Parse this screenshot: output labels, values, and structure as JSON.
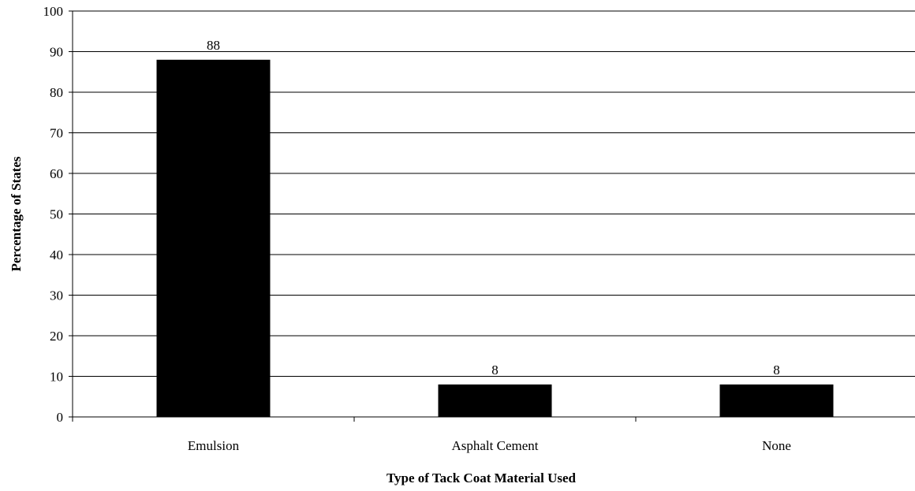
{
  "chart_data": {
    "type": "bar",
    "title": "",
    "xlabel": "Type of Tack Coat Material Used",
    "ylabel": "Percentage of States",
    "categories": [
      "Emulsion",
      "Asphalt Cement",
      "None"
    ],
    "values": [
      88,
      8,
      8
    ],
    "data_labels": [
      "88",
      "8",
      "8"
    ],
    "ylim": [
      0,
      100
    ],
    "y_ticks": [
      0,
      10,
      20,
      30,
      40,
      50,
      60,
      70,
      80,
      90,
      100
    ],
    "grid": true,
    "legend": "none",
    "bar_color": "#000000"
  }
}
